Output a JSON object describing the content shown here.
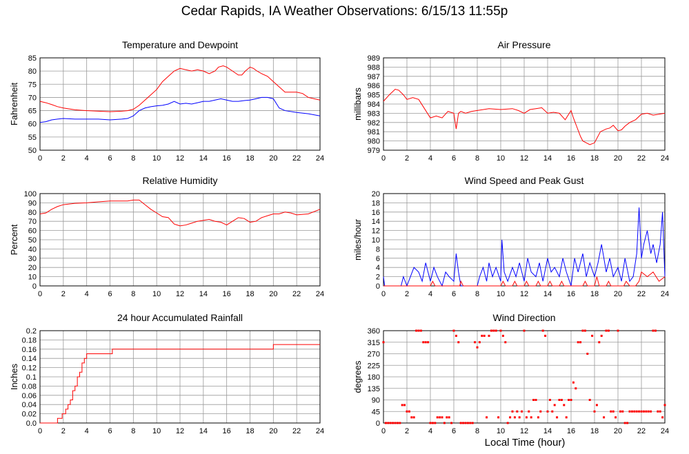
{
  "page": {
    "title": "Cedar Rapids, IA Weather Observations: 6/15/13 11:55p",
    "xaxis_title": "Local Time (hour)"
  },
  "chart_data": [
    {
      "id": "temperature",
      "type": "line",
      "title": "Temperature and Dewpoint",
      "ylabel": "Fahrenheit",
      "xlabel": "",
      "xlim": [
        0,
        24
      ],
      "ylim": [
        50,
        85
      ],
      "xticks": [
        0,
        2,
        4,
        6,
        8,
        10,
        12,
        14,
        16,
        18,
        20,
        22,
        24
      ],
      "yticks": [
        50,
        55,
        60,
        65,
        70,
        75,
        80,
        85
      ],
      "grid": true,
      "series": [
        {
          "color": "#ff0000",
          "x": [
            0,
            0.5,
            1,
            1.5,
            2,
            3,
            4,
            5,
            6,
            7,
            7.5,
            8,
            8.5,
            9,
            9.5,
            10,
            10.5,
            11,
            11.5,
            12,
            12.5,
            13,
            13.5,
            14,
            14.5,
            15,
            15.3,
            15.7,
            16,
            16.5,
            17,
            17.3,
            17.6,
            18,
            18.3,
            18.6,
            19,
            19.5,
            20,
            20.5,
            21,
            22,
            22.5,
            23,
            23.5,
            24
          ],
          "y": [
            68.5,
            68,
            67.3,
            66.5,
            66,
            65.3,
            65,
            64.8,
            64.6,
            64.8,
            65,
            65.5,
            67,
            69,
            71,
            73,
            76,
            78,
            80,
            81,
            80.5,
            80,
            80.5,
            80,
            79,
            80,
            81.5,
            82,
            81.5,
            80,
            78.5,
            78.5,
            80,
            81.5,
            81,
            80,
            79,
            78,
            76,
            74,
            72,
            72,
            71.5,
            70,
            69.5,
            69
          ]
        },
        {
          "color": "#0000ff",
          "x": [
            0,
            0.5,
            1,
            1.5,
            2,
            3,
            4,
            5,
            6,
            7,
            7.5,
            8,
            8.5,
            9,
            9.5,
            10,
            10.5,
            11,
            11.5,
            12,
            12.5,
            13,
            13.5,
            14,
            14.5,
            15,
            15.5,
            16,
            16.5,
            17,
            17.5,
            18,
            18.5,
            19,
            19.5,
            20,
            20.5,
            21,
            22,
            23,
            24
          ],
          "y": [
            60.5,
            60.8,
            61.5,
            61.8,
            62,
            61.8,
            61.8,
            61.8,
            61.5,
            61.8,
            62,
            63,
            65,
            66,
            66.5,
            66.8,
            67,
            67.5,
            68.5,
            67.5,
            67.8,
            67.5,
            68,
            68.5,
            68.5,
            69,
            69.5,
            69,
            68.5,
            68.5,
            68.8,
            69,
            69.5,
            70,
            70,
            69.5,
            66,
            65,
            64.3,
            63.8,
            63
          ]
        }
      ]
    },
    {
      "id": "pressure",
      "type": "line",
      "title": "Air Pressure",
      "ylabel": "millibars",
      "xlabel": "",
      "xlim": [
        0,
        24
      ],
      "ylim": [
        979,
        989
      ],
      "xticks": [
        0,
        2,
        4,
        6,
        8,
        10,
        12,
        14,
        16,
        18,
        20,
        22,
        24
      ],
      "yticks": [
        979,
        980,
        981,
        982,
        983,
        984,
        985,
        986,
        987,
        988,
        989
      ],
      "grid": true,
      "series": [
        {
          "color": "#ff0000",
          "x": [
            0,
            0.5,
            1,
            1.3,
            1.7,
            2,
            2.5,
            3,
            3.5,
            4,
            4.5,
            5,
            5.5,
            6,
            6.2,
            6.4,
            6.6,
            7,
            7.5,
            8,
            9,
            10,
            11,
            11.5,
            12,
            12.5,
            13,
            13.5,
            14,
            14.5,
            15,
            15.5,
            16,
            16.2,
            16.5,
            16.8,
            17,
            17.3,
            17.6,
            18,
            18.5,
            19,
            19.3,
            19.6,
            20,
            20.3,
            20.6,
            21,
            21.5,
            22,
            22.5,
            23,
            23.5,
            24
          ],
          "y": [
            984.3,
            985,
            985.6,
            985.5,
            985,
            984.5,
            984.7,
            984.5,
            983.5,
            982.5,
            982.7,
            982.5,
            983.2,
            983,
            981.3,
            983,
            983.2,
            983,
            983.2,
            983.3,
            983.5,
            983.4,
            983.5,
            983.3,
            983,
            983.4,
            983.5,
            983.6,
            983,
            983.1,
            983,
            982.3,
            983.3,
            982.5,
            981.5,
            980.5,
            980,
            979.8,
            979.6,
            979.8,
            981,
            981.3,
            981.4,
            981.7,
            981.1,
            981.2,
            981.6,
            982,
            982.3,
            982.9,
            983,
            982.8,
            982.9,
            983
          ]
        }
      ]
    },
    {
      "id": "humidity",
      "type": "line",
      "title": "Relative Humidity",
      "ylabel": "Percent",
      "xlabel": "",
      "xlim": [
        0,
        24
      ],
      "ylim": [
        0,
        100
      ],
      "xticks": [
        0,
        2,
        4,
        6,
        8,
        10,
        12,
        14,
        16,
        18,
        20,
        22,
        24
      ],
      "yticks": [
        0,
        10,
        20,
        30,
        40,
        50,
        60,
        70,
        80,
        90,
        100
      ],
      "grid": true,
      "series": [
        {
          "color": "#ff0000",
          "x": [
            0,
            0.5,
            1,
            1.5,
            2,
            3,
            4,
            5,
            6,
            7,
            7.5,
            8,
            8.5,
            9,
            9.5,
            10,
            10.5,
            11,
            11.5,
            12,
            12.5,
            13,
            13.5,
            14,
            14.5,
            15,
            15.5,
            16,
            16.5,
            17,
            17.5,
            18,
            18.5,
            19,
            19.5,
            20,
            20.5,
            21,
            21.5,
            22,
            23,
            24
          ],
          "y": [
            78,
            79,
            83,
            86,
            88,
            89.5,
            90,
            91,
            92,
            92,
            92,
            93,
            93,
            88,
            83,
            79,
            75,
            74,
            67,
            65,
            66,
            68,
            70,
            71,
            72,
            70,
            69,
            66,
            70,
            74,
            73,
            69,
            70,
            74,
            76,
            78,
            78,
            80,
            79,
            77,
            78,
            83
          ]
        }
      ]
    },
    {
      "id": "wind",
      "type": "line",
      "title": "Wind Speed and Peak Gust",
      "ylabel": "miles/hour",
      "xlabel": "",
      "xlim": [
        0,
        24
      ],
      "ylim": [
        0,
        20
      ],
      "xticks": [
        0,
        2,
        4,
        6,
        8,
        10,
        12,
        14,
        16,
        18,
        20,
        22,
        24
      ],
      "yticks": [
        0,
        2,
        4,
        6,
        8,
        10,
        12,
        14,
        16,
        18,
        20
      ],
      "grid": true,
      "series": [
        {
          "color": "#0000ff",
          "x": [
            0,
            0.1,
            0.3,
            0.5,
            1.5,
            1.7,
            2,
            2.3,
            2.6,
            3,
            3.3,
            3.6,
            3.8,
            4,
            4.3,
            4.6,
            5,
            5.3,
            5.6,
            6,
            6.2,
            6.4,
            6.6,
            7,
            8,
            8.2,
            8.5,
            8.8,
            9,
            9.3,
            9.6,
            10,
            10.1,
            10.3,
            10.6,
            11,
            11.3,
            11.6,
            12,
            12.3,
            12.6,
            13,
            13.3,
            13.6,
            14,
            14.3,
            14.6,
            15,
            15.3,
            15.6,
            16,
            16.3,
            16.6,
            17,
            17.3,
            17.6,
            18,
            18.3,
            18.6,
            19,
            19.3,
            19.6,
            20,
            20.3,
            20.6,
            21,
            21.3,
            21.6,
            21.8,
            22,
            22.2,
            22.5,
            22.8,
            23,
            23.3,
            23.6,
            23.8,
            24
          ],
          "y": [
            2,
            0,
            0,
            0,
            0,
            2,
            0,
            2,
            4,
            3,
            1,
            5,
            3,
            1,
            4,
            2,
            0,
            3,
            2,
            1,
            7,
            3,
            0,
            0,
            0,
            2,
            4,
            1,
            5,
            2,
            4,
            1,
            10,
            3,
            1,
            4,
            2,
            5,
            1,
            6,
            3,
            2,
            5,
            1,
            6,
            3,
            4,
            2,
            6,
            3,
            0,
            6,
            3,
            7,
            2,
            5,
            2,
            5,
            9,
            3,
            6,
            2,
            4,
            1,
            6,
            1,
            2,
            7,
            17,
            6,
            9,
            12,
            7,
            9,
            5,
            9,
            16,
            2
          ]
        },
        {
          "color": "#ff0000",
          "x": [
            0,
            4,
            4.2,
            4.4,
            6.5,
            6.6,
            6.8,
            10,
            10.2,
            10.4,
            11,
            11.2,
            11.4,
            12,
            12.2,
            12.4,
            13,
            13.2,
            13.4,
            14,
            14.2,
            14.4,
            15,
            15.2,
            15.4,
            16,
            17,
            17.2,
            17.4,
            18,
            18.2,
            18.4,
            19,
            19.2,
            19.4,
            20.5,
            20.7,
            21,
            21.5,
            21.8,
            22,
            22.5,
            23,
            23.5,
            24
          ],
          "y": [
            0,
            0,
            1,
            0,
            0,
            1,
            0,
            0,
            1,
            0,
            0,
            1,
            0,
            0,
            1,
            0,
            0,
            1,
            0,
            0,
            1,
            0,
            0,
            1,
            0,
            0,
            0,
            1,
            0,
            0,
            2,
            0,
            0,
            1,
            0,
            0,
            1,
            0,
            0,
            1,
            3,
            2,
            3,
            1,
            2
          ]
        }
      ]
    },
    {
      "id": "rainfall",
      "type": "line",
      "title": "24 hour Accumulated Rainfall",
      "ylabel": "Inches",
      "xlabel": "",
      "xlim": [
        0,
        24
      ],
      "ylim": [
        0,
        0.2
      ],
      "xticks": [
        0,
        2,
        4,
        6,
        8,
        10,
        12,
        14,
        16,
        18,
        20,
        22,
        24
      ],
      "yticks": [
        0,
        0.02,
        0.04,
        0.06,
        0.08,
        0.1,
        0.12,
        0.14,
        0.16,
        0.18,
        0.2
      ],
      "ytick_labels": [
        "0.0",
        "0.02",
        "0.04",
        "0.06",
        "0.08",
        "0.1",
        "0.12",
        "0.14",
        "0.16",
        "0.18",
        "0.2"
      ],
      "grid": true,
      "series": [
        {
          "color": "#ff0000",
          "step": true,
          "x": [
            0,
            1.3,
            1.5,
            1.7,
            1.9,
            2.2,
            2.4,
            2.6,
            2.8,
            3.0,
            3.2,
            3.4,
            3.6,
            3.8,
            4.0,
            4.4,
            6.0,
            6.2,
            19.9,
            20.0,
            24
          ],
          "y": [
            0,
            0,
            0.01,
            0.01,
            0.02,
            0.03,
            0.04,
            0.05,
            0.07,
            0.08,
            0.1,
            0.11,
            0.13,
            0.14,
            0.15,
            0.15,
            0.15,
            0.16,
            0.16,
            0.17,
            0.17
          ]
        }
      ]
    },
    {
      "id": "direction",
      "type": "scatter",
      "title": "Wind Direction",
      "ylabel": "degrees",
      "xlabel": "Local Time (hour)",
      "xlim": [
        0,
        24
      ],
      "ylim": [
        0,
        360
      ],
      "xticks": [
        0,
        2,
        4,
        6,
        8,
        10,
        12,
        14,
        16,
        18,
        20,
        22,
        24
      ],
      "yticks": [
        0,
        45,
        90,
        135,
        180,
        225,
        270,
        315,
        360
      ],
      "grid": true,
      "series": [
        {
          "color": "#ff0000",
          "x": [
            0,
            0.2,
            0.4,
            0.6,
            0.8,
            1.0,
            1.2,
            1.4,
            1.6,
            1.8,
            2.0,
            2.2,
            2.4,
            2.6,
            2.8,
            3.0,
            3.2,
            3.4,
            3.6,
            3.8,
            4.0,
            4.2,
            4.4,
            4.6,
            4.8,
            5.0,
            5.2,
            5.4,
            5.6,
            5.8,
            6.0,
            6.2,
            6.4,
            6.6,
            6.8,
            7.0,
            7.2,
            7.4,
            7.6,
            7.8,
            8.0,
            8.2,
            8.4,
            8.6,
            8.8,
            9.0,
            9.2,
            9.4,
            9.6,
            9.8,
            10.0,
            10.2,
            10.4,
            10.6,
            10.8,
            11.0,
            11.2,
            11.4,
            11.6,
            11.8,
            12.0,
            12.2,
            12.4,
            12.6,
            12.8,
            13.0,
            13.2,
            13.4,
            13.6,
            13.8,
            14.0,
            14.2,
            14.4,
            14.6,
            14.8,
            15.0,
            15.2,
            15.4,
            15.6,
            15.8,
            16.0,
            16.2,
            16.4,
            16.6,
            16.8,
            17.0,
            17.2,
            17.4,
            17.6,
            17.8,
            18.0,
            18.2,
            18.4,
            18.6,
            18.8,
            19.0,
            19.2,
            19.4,
            19.6,
            19.8,
            20.0,
            20.2,
            20.4,
            20.6,
            20.8,
            21.0,
            21.2,
            21.4,
            21.6,
            21.8,
            22.0,
            22.2,
            22.4,
            22.6,
            22.8,
            23.0,
            23.2,
            23.4,
            23.6,
            23.8,
            24.0
          ],
          "y": [
            315,
            0,
            0,
            0,
            0,
            0,
            0,
            0,
            70,
            70,
            45,
            45,
            22,
            22,
            360,
            360,
            360,
            315,
            315,
            315,
            0,
            0,
            0,
            22,
            22,
            22,
            0,
            22,
            22,
            0,
            360,
            340,
            315,
            0,
            0,
            0,
            0,
            0,
            0,
            315,
            295,
            315,
            340,
            340,
            22,
            340,
            360,
            360,
            360,
            22,
            360,
            340,
            315,
            0,
            22,
            45,
            22,
            45,
            22,
            45,
            360,
            22,
            45,
            22,
            90,
            90,
            22,
            45,
            360,
            340,
            45,
            90,
            45,
            70,
            22,
            90,
            90,
            70,
            22,
            90,
            90,
            158,
            135,
            315,
            315,
            360,
            360,
            270,
            90,
            340,
            45,
            70,
            315,
            340,
            22,
            360,
            360,
            45,
            45,
            22,
            360,
            45,
            45,
            0,
            0,
            45,
            45,
            45,
            45,
            45,
            45,
            45,
            45,
            45,
            45,
            360,
            360,
            45,
            45,
            22,
            70
          ]
        }
      ]
    }
  ]
}
